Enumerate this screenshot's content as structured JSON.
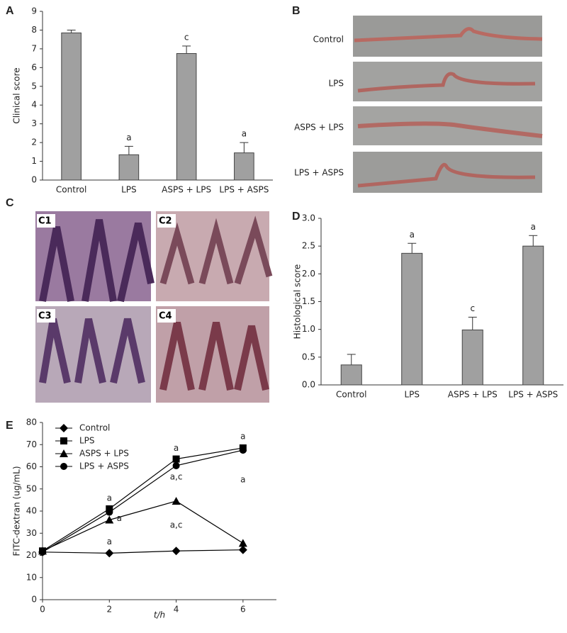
{
  "chart_data": [
    {
      "type": "bar",
      "panel": "A",
      "ylabel": "Clinical score",
      "categories": [
        "Control",
        "LPS",
        "ASPS + LPS",
        "LPS + ASPS"
      ],
      "values": [
        7.85,
        1.35,
        6.75,
        1.45
      ],
      "errors": [
        0.15,
        0.45,
        0.4,
        0.55
      ],
      "annotations": [
        null,
        "a",
        "c",
        "a"
      ],
      "color": "#a0a0a0",
      "ylim": [
        0,
        9
      ],
      "yticks": [
        0,
        1,
        2,
        3,
        4,
        5,
        6,
        7,
        8,
        9
      ],
      "grid": false
    },
    {
      "type": "bar",
      "panel": "D",
      "ylabel": "Histological score",
      "categories": [
        "Control",
        "LPS",
        "ASPS + LPS",
        "LPS + ASPS"
      ],
      "values": [
        0.36,
        2.37,
        0.99,
        2.5
      ],
      "errors": [
        0.19,
        0.18,
        0.23,
        0.19
      ],
      "annotations": [
        null,
        "a",
        "c",
        "a"
      ],
      "color": "#a0a0a0",
      "ylim": [
        0,
        3
      ],
      "yticks": [
        {
          "value": 0,
          "label": "0.0"
        },
        0.5,
        {
          "value": 1,
          "label": "1.0"
        },
        1.5,
        {
          "value": 2,
          "label": "2.0"
        },
        2.5,
        {
          "value": 3,
          "label": "3.0"
        }
      ],
      "grid": false
    },
    {
      "type": "line",
      "panel": "E",
      "ylabel": "FITC-dextran (ug/mL)",
      "xlabel": "t/h",
      "x": [
        0,
        2,
        4,
        6
      ],
      "xlim": [
        0,
        7
      ],
      "xticks": [
        0,
        2,
        4,
        6
      ],
      "ylim": [
        0,
        80
      ],
      "yticks": [
        0,
        10,
        20,
        30,
        40,
        50,
        60,
        70,
        80
      ],
      "grid": false,
      "legend": "upper left",
      "series": [
        {
          "name": "Control",
          "color": "#000000",
          "marker": "diamond",
          "values": [
            21.5,
            21,
            22,
            22.5
          ],
          "annotations": [
            null,
            null,
            null,
            null
          ]
        },
        {
          "name": "LPS",
          "color": "#000000",
          "marker": "square",
          "values": [
            22,
            41,
            63.5,
            68.5
          ],
          "annotations": [
            null,
            "a",
            "a",
            "a"
          ]
        },
        {
          "name": "ASPS + LPS",
          "color": "#000000",
          "marker": "triangle",
          "values": [
            22,
            36,
            44.5,
            25.5
          ],
          "annotations": [
            null,
            "a",
            "a,c",
            null
          ]
        },
        {
          "name": "LPS + ASPS",
          "color": "#000000",
          "marker": "circle",
          "values": [
            21.5,
            39.5,
            60.5,
            67.5
          ],
          "annotations": [
            null,
            "a",
            "a,c",
            "a"
          ]
        }
      ]
    }
  ],
  "figure_b": {
    "panel": "B",
    "rows": [
      "Control",
      "LPS",
      "ASPS + LPS",
      "LPS + ASPS"
    ]
  },
  "figure_c": {
    "panel": "C",
    "tiles": [
      "C1",
      "C2",
      "C3",
      "C4"
    ]
  }
}
